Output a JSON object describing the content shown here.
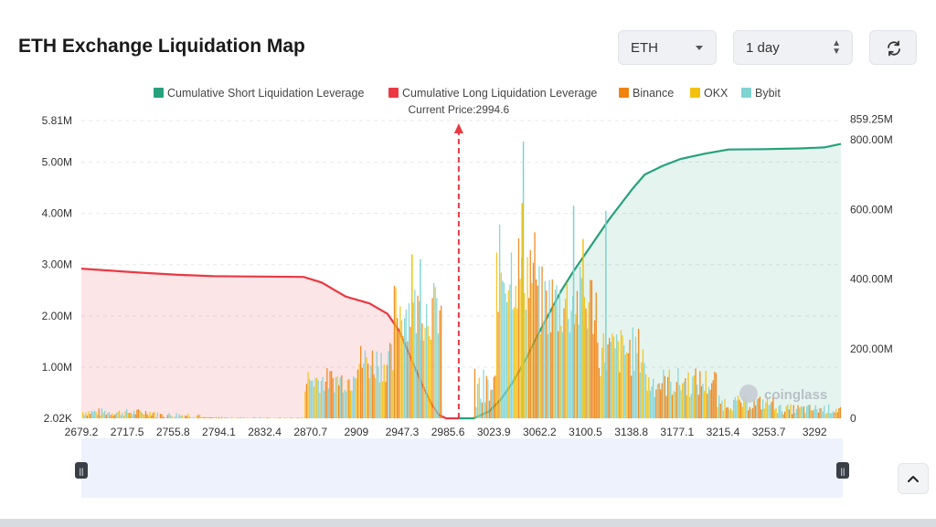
{
  "header": {
    "title": "ETH Exchange Liquidation Map"
  },
  "controls": {
    "symbol_value": "ETH",
    "period_value": "1 day"
  },
  "icons": {
    "refresh": "refresh-icon",
    "dropdown": "chevron-down-icon",
    "stepper": "up-down-icon",
    "scroll_top": "chevron-up-icon",
    "watermark": "coinglass-logo"
  },
  "watermark_text": "coinglass",
  "colors": {
    "short": "#26a17b",
    "long": "#ea3943",
    "binance": "#f0820f",
    "okx": "#f3c10d",
    "bybit": "#7fd3d1"
  },
  "chart_data": {
    "type": "bar",
    "title": "",
    "legend": [
      "Cumulative Short Liquidation Leverage",
      "Cumulative Long Liquidation Leverage",
      "Binance",
      "OKX",
      "Bybit"
    ],
    "legend_position": "top",
    "current_price_label": "Current Price:2994.6",
    "current_price": 2994.6,
    "x_tick_labels": [
      "2679.2",
      "2717.5",
      "2755.8",
      "2794.1",
      "2832.4",
      "2870.7",
      "2909",
      "2947.3",
      "2985.6",
      "3023.9",
      "3062.2",
      "3100.5",
      "3138.8",
      "3177.1",
      "3215.4",
      "3253.7",
      "3292"
    ],
    "xlim": [
      2679.2,
      3314
    ],
    "y_left_tick_labels": [
      "5.81M",
      "5.00M",
      "4.00M",
      "3.00M",
      "2.00M",
      "1.00M",
      "2.02K"
    ],
    "y_left_ticks": [
      5810000,
      5000000,
      4000000,
      3000000,
      2000000,
      1000000,
      2020
    ],
    "ylim_left": [
      2020,
      5810000
    ],
    "y_right_tick_labels": [
      "859.25M",
      "800.00M",
      "600.00M",
      "400.00M",
      "200.00M",
      "0"
    ],
    "y_right_ticks": [
      859250000,
      800000000,
      600000000,
      400000000,
      200000000,
      0
    ],
    "ylim_right": [
      0,
      859250000
    ],
    "grid": true,
    "series": [
      {
        "name": "Cumulative Long Liquidation Leverage",
        "kind": "area",
        "axis": "right",
        "points": [
          [
            2679.2,
            430000000
          ],
          [
            2700,
            425000000
          ],
          [
            2730,
            418000000
          ],
          [
            2760,
            412000000
          ],
          [
            2790,
            408000000
          ],
          [
            2830,
            407000000
          ],
          [
            2865,
            406000000
          ],
          [
            2880,
            390000000
          ],
          [
            2900,
            350000000
          ],
          [
            2920,
            330000000
          ],
          [
            2935,
            300000000
          ],
          [
            2945,
            250000000
          ],
          [
            2955,
            170000000
          ],
          [
            2965,
            90000000
          ],
          [
            2972,
            40000000
          ],
          [
            2978,
            10000000
          ],
          [
            2984,
            0
          ],
          [
            2994.6,
            0
          ]
        ]
      },
      {
        "name": "Cumulative Short Liquidation Leverage",
        "kind": "area",
        "axis": "right",
        "points": [
          [
            2994.6,
            0
          ],
          [
            3007,
            0
          ],
          [
            3020,
            20000000
          ],
          [
            3030,
            55000000
          ],
          [
            3040,
            105000000
          ],
          [
            3050,
            165000000
          ],
          [
            3060,
            235000000
          ],
          [
            3070,
            300000000
          ],
          [
            3080,
            365000000
          ],
          [
            3090,
            420000000
          ],
          [
            3100,
            470000000
          ],
          [
            3110,
            520000000
          ],
          [
            3120,
            570000000
          ],
          [
            3130,
            615000000
          ],
          [
            3140,
            660000000
          ],
          [
            3150,
            700000000
          ],
          [
            3165,
            725000000
          ],
          [
            3180,
            745000000
          ],
          [
            3200,
            760000000
          ],
          [
            3220,
            772000000
          ],
          [
            3250,
            773000000
          ],
          [
            3280,
            775000000
          ],
          [
            3300,
            778000000
          ],
          [
            3314,
            788000000
          ]
        ]
      }
    ]
  }
}
